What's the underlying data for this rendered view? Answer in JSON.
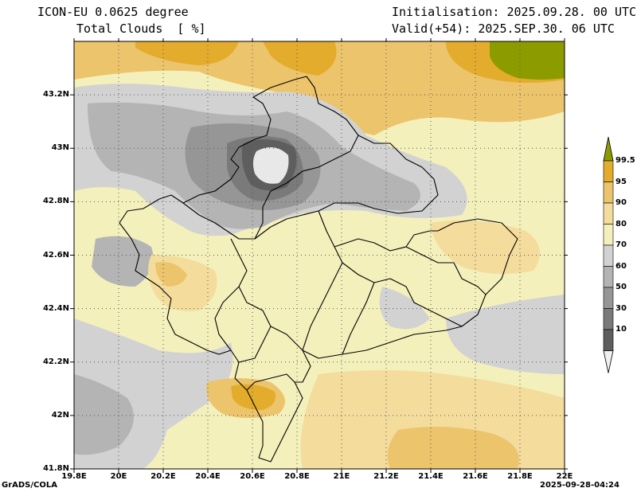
{
  "header": {
    "model": "ICON-EU 0.0625 degree",
    "variable": "Total Clouds  [ %]",
    "init": "Initialisation: 2025.09.28. 00 UTC",
    "valid": "Valid(+54): 2025.SEP.30. 06 UTC"
  },
  "footer": {
    "software": "GrADS/COLA",
    "timestamp": "2025-09-28-04:24"
  },
  "axes": {
    "lat_labels": [
      "43.2N",
      "43N",
      "42.8N",
      "42.6N",
      "42.4N",
      "42.2N",
      "42N",
      "41.8N"
    ],
    "lat_values": [
      43.2,
      43.0,
      42.8,
      42.6,
      42.4,
      42.2,
      42.0,
      41.8
    ],
    "lon_labels": [
      "19.8E",
      "20E",
      "20.2E",
      "20.4E",
      "20.6E",
      "20.8E",
      "21E",
      "21.2E",
      "21.4E",
      "21.6E",
      "21.8E",
      "22E"
    ],
    "lon_values": [
      19.8,
      20.0,
      20.2,
      20.4,
      20.6,
      20.8,
      21.0,
      21.2,
      21.4,
      21.6,
      21.8,
      22.0
    ],
    "lat_range": [
      41.8,
      43.4
    ],
    "lon_range": [
      19.8,
      22.0
    ],
    "grid": "dotted"
  },
  "colorbar": {
    "labels": [
      "99.5",
      "95",
      "90",
      "80",
      "70",
      "60",
      "50",
      "30",
      "10"
    ],
    "colors": [
      "#8c9c00",
      "#e4ac2c",
      "#ecc46c",
      "#f4dc9c",
      "#f4f0bc",
      "#d2d2d2",
      "#b4b4b4",
      "#969696",
      "#7a7a7a",
      "#5e5e5e",
      "#f0f0f0"
    ]
  }
}
